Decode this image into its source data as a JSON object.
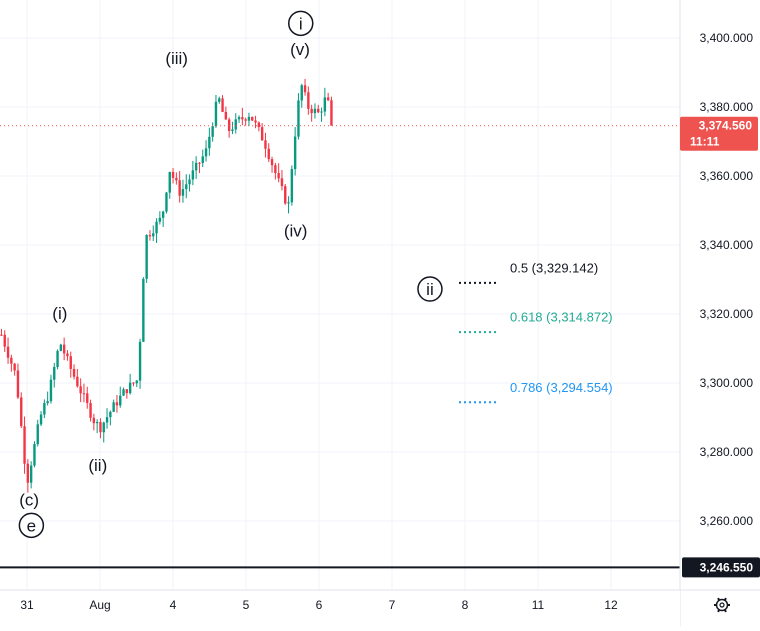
{
  "chart_data": {
    "type": "candlestick",
    "y_range": [
      3240,
      3411
    ],
    "y_ticks": [
      "3,400.000",
      "3,380.000",
      "3,360.000",
      "3,340.000",
      "3,320.000",
      "3,300.000",
      "3,280.000",
      "3,260.000"
    ],
    "y_tick_values": [
      3400,
      3380,
      3360,
      3340,
      3320,
      3300,
      3280,
      3260
    ],
    "x_ticks": [
      "31",
      "Aug",
      "4",
      "5",
      "6",
      "7",
      "8",
      "11",
      "12"
    ],
    "x_tick_day_index": [
      0,
      1,
      2,
      3,
      4,
      5,
      6,
      7,
      8
    ],
    "current_price": {
      "label": "3,374.560",
      "countdown": "11:11",
      "value": 3374.56,
      "color": "#ef5350"
    },
    "horizontal_line": {
      "label": "3,246.550",
      "value": 3246.55,
      "color": "#131722"
    },
    "wave_labels": [
      {
        "text": "(c)",
        "day": 0.03,
        "price": 3264.5,
        "circled": false
      },
      {
        "text": "e",
        "day": 0.06,
        "price": 3257,
        "circled": true
      },
      {
        "text": "(i)",
        "day": 0.45,
        "price": 3318.5,
        "circled": false
      },
      {
        "text": "(ii)",
        "day": 0.97,
        "price": 3274.5,
        "circled": false
      },
      {
        "text": "(iii)",
        "day": 2.05,
        "price": 3392.5,
        "circled": false
      },
      {
        "text": "i",
        "day": 3.75,
        "price": 3402.5,
        "circled": true
      },
      {
        "text": "(v)",
        "day": 3.74,
        "price": 3395,
        "circled": false
      },
      {
        "text": "(iv)",
        "day": 3.68,
        "price": 3342.5,
        "circled": false
      },
      {
        "text": "ii",
        "day": 5.52,
        "price": 3325.5,
        "circled": true
      }
    ],
    "fib_levels": [
      {
        "ratio": "0.5",
        "price_text": "3,329.142",
        "label": "0.5 (3,329.142)",
        "value": 3329.142,
        "color": "#131722"
      },
      {
        "ratio": "0.618",
        "price_text": "3,314.872",
        "label": "0.618 (3,314.872)",
        "value": 3314.872,
        "color": "#22ab94"
      },
      {
        "ratio": "0.786",
        "price_text": "3,294.554",
        "label": "0.786 (3,294.554)",
        "value": 3294.554,
        "color": "#2196f3"
      }
    ],
    "path_keypoints": [
      [
        -0.35,
        3314
      ],
      [
        -0.15,
        3302
      ],
      [
        0.0,
        3271
      ],
      [
        0.18,
        3290
      ],
      [
        0.3,
        3297
      ],
      [
        0.45,
        3312
      ],
      [
        0.58,
        3305
      ],
      [
        0.75,
        3297
      ],
      [
        0.92,
        3289
      ],
      [
        1.0,
        3287
      ],
      [
        1.18,
        3293
      ],
      [
        1.35,
        3298
      ],
      [
        1.52,
        3301
      ],
      [
        1.62,
        3342
      ],
      [
        1.85,
        3348
      ],
      [
        1.95,
        3362
      ],
      [
        2.1,
        3355
      ],
      [
        2.25,
        3360
      ],
      [
        2.45,
        3367
      ],
      [
        2.62,
        3383
      ],
      [
        2.75,
        3373
      ],
      [
        2.9,
        3376
      ],
      [
        3.05,
        3378
      ],
      [
        3.25,
        3370
      ],
      [
        3.45,
        3358
      ],
      [
        3.58,
        3351
      ],
      [
        3.65,
        3368
      ],
      [
        3.75,
        3387
      ],
      [
        3.85,
        3380
      ],
      [
        4.0,
        3378
      ],
      [
        4.1,
        3383
      ],
      [
        4.2,
        3374.56
      ]
    ],
    "colors": {
      "up": "#089981",
      "down": "#f23645",
      "grid": "#f0f3fa"
    },
    "settings_icon": "gear-icon"
  }
}
